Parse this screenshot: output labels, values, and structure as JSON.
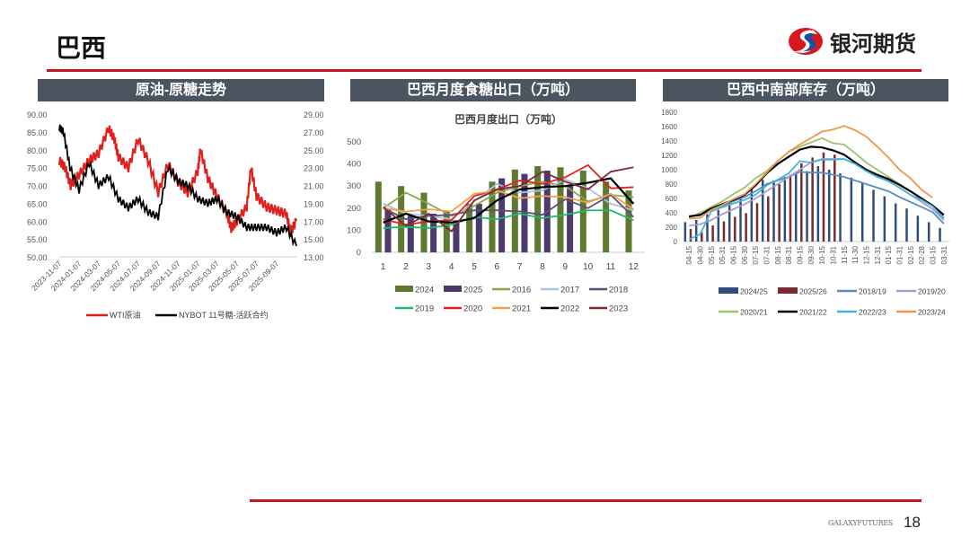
{
  "header": {
    "title": "巴西",
    "logo_text": "银河期货",
    "accent": "#c8161d"
  },
  "panels": [
    {
      "title": "原油-原糖走势"
    },
    {
      "title": "巴西月度食糖出口（万吨）"
    },
    {
      "title": "巴西中南部库存（万吨）"
    }
  ],
  "footer": {
    "brand": "GALAXYFUTURES",
    "page": "18"
  },
  "chart_data": [
    {
      "type": "line",
      "title": "",
      "x_ticks": [
        "2023-11-07",
        "2024-01-07",
        "2024-03-07",
        "2024-05-07",
        "2024-07-07",
        "2024-09-07",
        "2024-11-07",
        "2025-01-07",
        "2025-03-07",
        "2025-05-07",
        "2025-07-07",
        "2025-09-07"
      ],
      "ylim_left": [
        50,
        90
      ],
      "yticks_left": [
        "50.00",
        "55.00",
        "60.00",
        "65.00",
        "70.00",
        "75.00",
        "80.00",
        "85.00",
        "90.00"
      ],
      "ylim_right": [
        13,
        29
      ],
      "yticks_right": [
        "13.00",
        "15.00",
        "17.00",
        "19.00",
        "21.00",
        "23.00",
        "25.00",
        "27.00",
        "29.00"
      ],
      "legend_position": "bottom",
      "series": [
        {
          "name": "WTI原油",
          "axis": "left",
          "color": "#e0201c",
          "points": [
            [
              "2023-11-07",
              77
            ],
            [
              "2023-11-25",
              75
            ],
            [
              "2023-12-12",
              70
            ],
            [
              "2024-01-07",
              73
            ],
            [
              "2024-02-07",
              77
            ],
            [
              "2024-03-07",
              79
            ],
            [
              "2024-04-07",
              86
            ],
            [
              "2024-04-25",
              83
            ],
            [
              "2024-05-07",
              78
            ],
            [
              "2024-06-07",
              75
            ],
            [
              "2024-07-07",
              83
            ],
            [
              "2024-08-07",
              77
            ],
            [
              "2024-09-07",
              68
            ],
            [
              "2024-10-07",
              76
            ],
            [
              "2024-11-07",
              71
            ],
            [
              "2024-12-07",
              68
            ],
            [
              "2025-01-07",
              74
            ],
            [
              "2025-01-15",
              80
            ],
            [
              "2025-02-07",
              72
            ],
            [
              "2025-03-07",
              67
            ],
            [
              "2025-04-07",
              62
            ],
            [
              "2025-04-20",
              58
            ],
            [
              "2025-05-07",
              60
            ],
            [
              "2025-06-07",
              64
            ],
            [
              "2025-06-20",
              75
            ],
            [
              "2025-07-07",
              67
            ],
            [
              "2025-08-07",
              64
            ],
            [
              "2025-09-07",
              63
            ],
            [
              "2025-10-07",
              62
            ],
            [
              "2025-10-20",
              57
            ],
            [
              "2025-11-07",
              60
            ]
          ]
        },
        {
          "name": "NYBOT 11号糖-活跃合约",
          "axis": "right",
          "color": "#000000",
          "points": [
            [
              "2023-11-07",
              27.5
            ],
            [
              "2023-11-20",
              27
            ],
            [
              "2023-12-10",
              23
            ],
            [
              "2024-01-07",
              20.5
            ],
            [
              "2024-02-07",
              23.5
            ],
            [
              "2024-03-07",
              21
            ],
            [
              "2024-04-07",
              22
            ],
            [
              "2024-05-07",
              19.5
            ],
            [
              "2024-06-07",
              18.5
            ],
            [
              "2024-07-07",
              19.5
            ],
            [
              "2024-08-07",
              18
            ],
            [
              "2024-09-07",
              17.5
            ],
            [
              "2024-10-07",
              23
            ],
            [
              "2024-11-07",
              21.5
            ],
            [
              "2024-12-07",
              21
            ],
            [
              "2025-01-07",
              19.5
            ],
            [
              "2025-02-07",
              19
            ],
            [
              "2025-03-07",
              19.5
            ],
            [
              "2025-04-07",
              18
            ],
            [
              "2025-05-07",
              17.5
            ],
            [
              "2025-06-07",
              16.3
            ],
            [
              "2025-07-07",
              16.3
            ],
            [
              "2025-08-07",
              16.3
            ],
            [
              "2025-09-07",
              15.7
            ],
            [
              "2025-10-07",
              16.3
            ],
            [
              "2025-11-07",
              14.2
            ]
          ]
        }
      ]
    },
    {
      "type": "bar+line",
      "title": "巴西月度出口（万吨）",
      "categories": [
        "1",
        "2",
        "3",
        "4",
        "5",
        "6",
        "7",
        "8",
        "9",
        "10",
        "11",
        "12"
      ],
      "ylim": [
        0,
        500
      ],
      "yticks": [
        "0",
        "100",
        "200",
        "300",
        "400",
        "500"
      ],
      "legend_position": "bottom",
      "bars": [
        {
          "name": "2024",
          "color": "#5e7a2e",
          "values": [
            320,
            300,
            270,
            185,
            220,
            320,
            375,
            390,
            385,
            370,
            320,
            280
          ]
        },
        {
          "name": "2025",
          "color": "#4b3a6b",
          "values": [
            195,
            165,
            175,
            145,
            220,
            335,
            355,
            370,
            300,
            null,
            null,
            null
          ]
        }
      ],
      "series": [
        {
          "name": "2016",
          "color": "#8aa84a",
          "values": [
            200,
            270,
            220,
            165,
            210,
            270,
            300,
            320,
            300,
            230,
            260,
            250
          ]
        },
        {
          "name": "2017",
          "color": "#a9c3e0",
          "values": [
            220,
            175,
            165,
            150,
            230,
            310,
            270,
            280,
            330,
            290,
            220,
            190
          ]
        },
        {
          "name": "2018",
          "color": "#5d4f7a",
          "values": [
            200,
            150,
            165,
            170,
            190,
            190,
            185,
            170,
            240,
            200,
            260,
            160
          ]
        },
        {
          "name": "2019",
          "color": "#1fb86a",
          "values": [
            110,
            115,
            110,
            125,
            160,
            150,
            175,
            155,
            170,
            190,
            190,
            145
          ]
        },
        {
          "name": "2020",
          "color": "#e5221f",
          "values": [
            150,
            125,
            140,
            145,
            255,
            285,
            325,
            310,
            340,
            395,
            290,
            295
          ]
        },
        {
          "name": "2021",
          "color": "#f2a04a",
          "values": [
            200,
            185,
            195,
            185,
            265,
            280,
            245,
            255,
            250,
            225,
            265,
            195
          ]
        },
        {
          "name": "2022",
          "color": "#000000",
          "values": [
            135,
            175,
            140,
            135,
            155,
            235,
            285,
            295,
            300,
            315,
            335,
            220
          ]
        },
        {
          "name": "2023",
          "color": "#7b2a33",
          "values": [
            205,
            120,
            175,
            95,
            235,
            285,
            300,
            365,
            320,
            285,
            365,
            385
          ]
        }
      ]
    },
    {
      "type": "bar+line",
      "title": "",
      "categories": [
        "04-15",
        "04-30",
        "05-15",
        "05-31",
        "06-15",
        "06-30",
        "07-15",
        "07-31",
        "08-15",
        "08-31",
        "09-15",
        "09-30",
        "10-15",
        "10-31",
        "11-15",
        "11-30",
        "12-15",
        "12-31",
        "01-15",
        "01-31",
        "02-15",
        "02-28",
        "03-15",
        "03-31"
      ],
      "ylim": [
        0,
        1800
      ],
      "yticks": [
        "0",
        "200",
        "400",
        "600",
        "800",
        "1000",
        "1200",
        "1400",
        "1600",
        "1800"
      ],
      "legend_position": "bottom",
      "bars": [
        {
          "name": "2024/25",
          "color": "#2e4f7a",
          "values": [
            270,
            300,
            380,
            440,
            540,
            630,
            740,
            860,
            850,
            900,
            970,
            980,
            1050,
            1000,
            950,
            890,
            820,
            720,
            630,
            530,
            460,
            360,
            270,
            190
          ]
        },
        {
          "name": "2025/26",
          "color": "#7a2a30",
          "values": [
            175,
            130,
            225,
            280,
            345,
            395,
            535,
            630,
            800,
            930,
            1090,
            1170,
            1240,
            1210,
            null,
            null,
            null,
            null,
            null,
            null,
            null,
            null,
            null,
            null
          ]
        }
      ],
      "series": [
        {
          "name": "2018/19",
          "color": "#5a8cc4",
          "values": [
            350,
            370,
            450,
            500,
            560,
            620,
            700,
            800,
            850,
            900,
            970,
            960,
            960,
            930,
            900,
            850,
            800,
            750,
            700,
            620,
            550,
            480,
            410,
            250
          ]
        },
        {
          "name": "2019/20",
          "color": "#a99bd0",
          "values": [
            220,
            240,
            300,
            380,
            450,
            520,
            600,
            700,
            800,
            900,
            1000,
            1100,
            1150,
            1150,
            1150,
            1080,
            1000,
            920,
            850,
            750,
            650,
            550,
            450,
            300
          ]
        },
        {
          "name": "2020/21",
          "color": "#9cc26a",
          "values": [
            330,
            400,
            480,
            560,
            660,
            750,
            880,
            980,
            1120,
            1250,
            1320,
            1380,
            1440,
            1370,
            1350,
            1230,
            1100,
            1000,
            900,
            800,
            700,
            600,
            490,
            330
          ]
        },
        {
          "name": "2021/22",
          "color": "#000000",
          "values": [
            350,
            370,
            460,
            520,
            580,
            650,
            780,
            950,
            1080,
            1180,
            1280,
            1320,
            1310,
            1270,
            1210,
            1100,
            1000,
            930,
            870,
            790,
            700,
            600,
            500,
            370
          ]
        },
        {
          "name": "2022/23",
          "color": "#45b3d8",
          "values": [
            30,
            100,
            420,
            480,
            530,
            580,
            650,
            780,
            860,
            950,
            1120,
            1100,
            1140,
            1140,
            1150,
            1080,
            980,
            900,
            840,
            750,
            650,
            580,
            490,
            320
          ]
        },
        {
          "name": "2023/24",
          "color": "#f0964a",
          "values": [
            320,
            330,
            440,
            510,
            590,
            660,
            800,
            960,
            1120,
            1250,
            1350,
            1440,
            1530,
            1560,
            1610,
            1550,
            1460,
            1320,
            1170,
            1000,
            880,
            720,
            610,
            null
          ]
        }
      ]
    }
  ]
}
